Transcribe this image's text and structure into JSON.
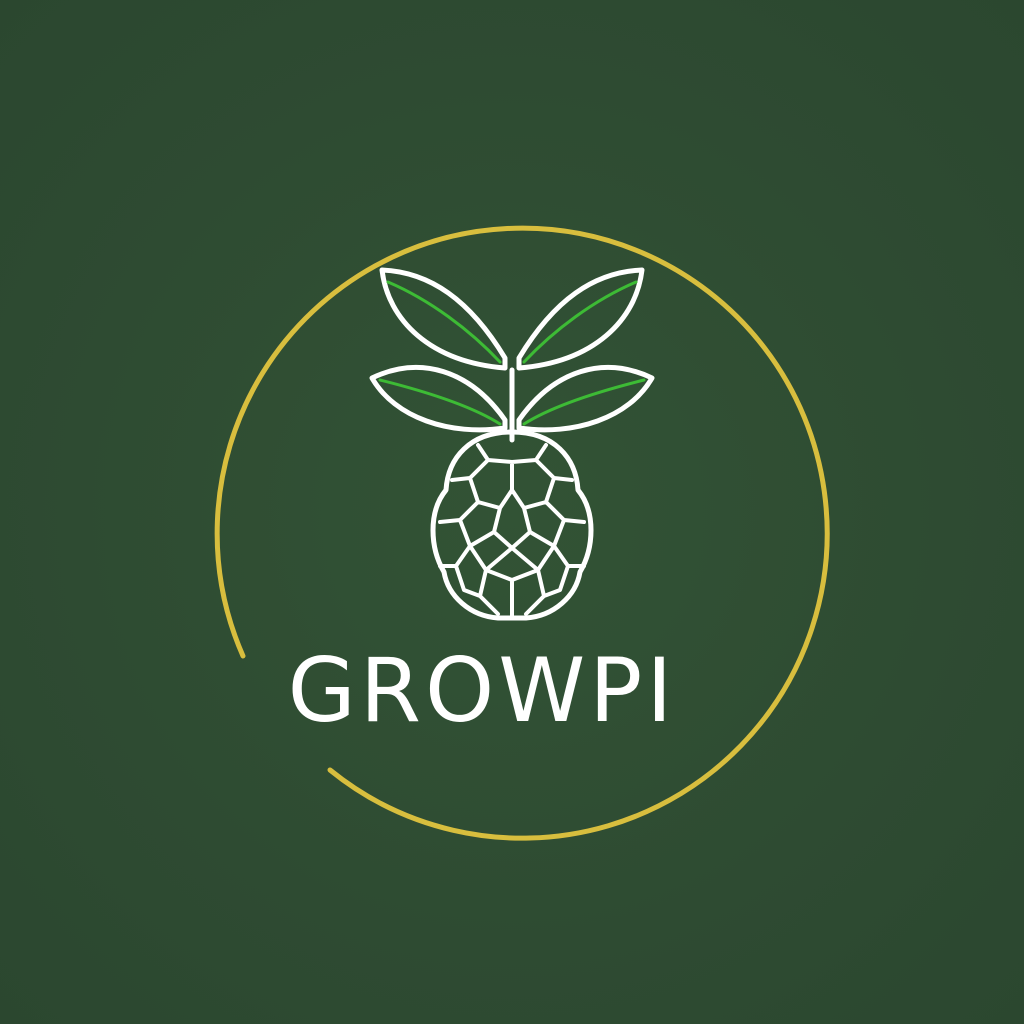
{
  "brand": {
    "name": "GROWPI"
  },
  "logo": {
    "icon": "raspberry-leaf-icon"
  },
  "colors": {
    "background": "#2f4c33",
    "ring": "#d8be3e",
    "outline": "#ffffff",
    "leaf_accent": "#3dbb35"
  }
}
